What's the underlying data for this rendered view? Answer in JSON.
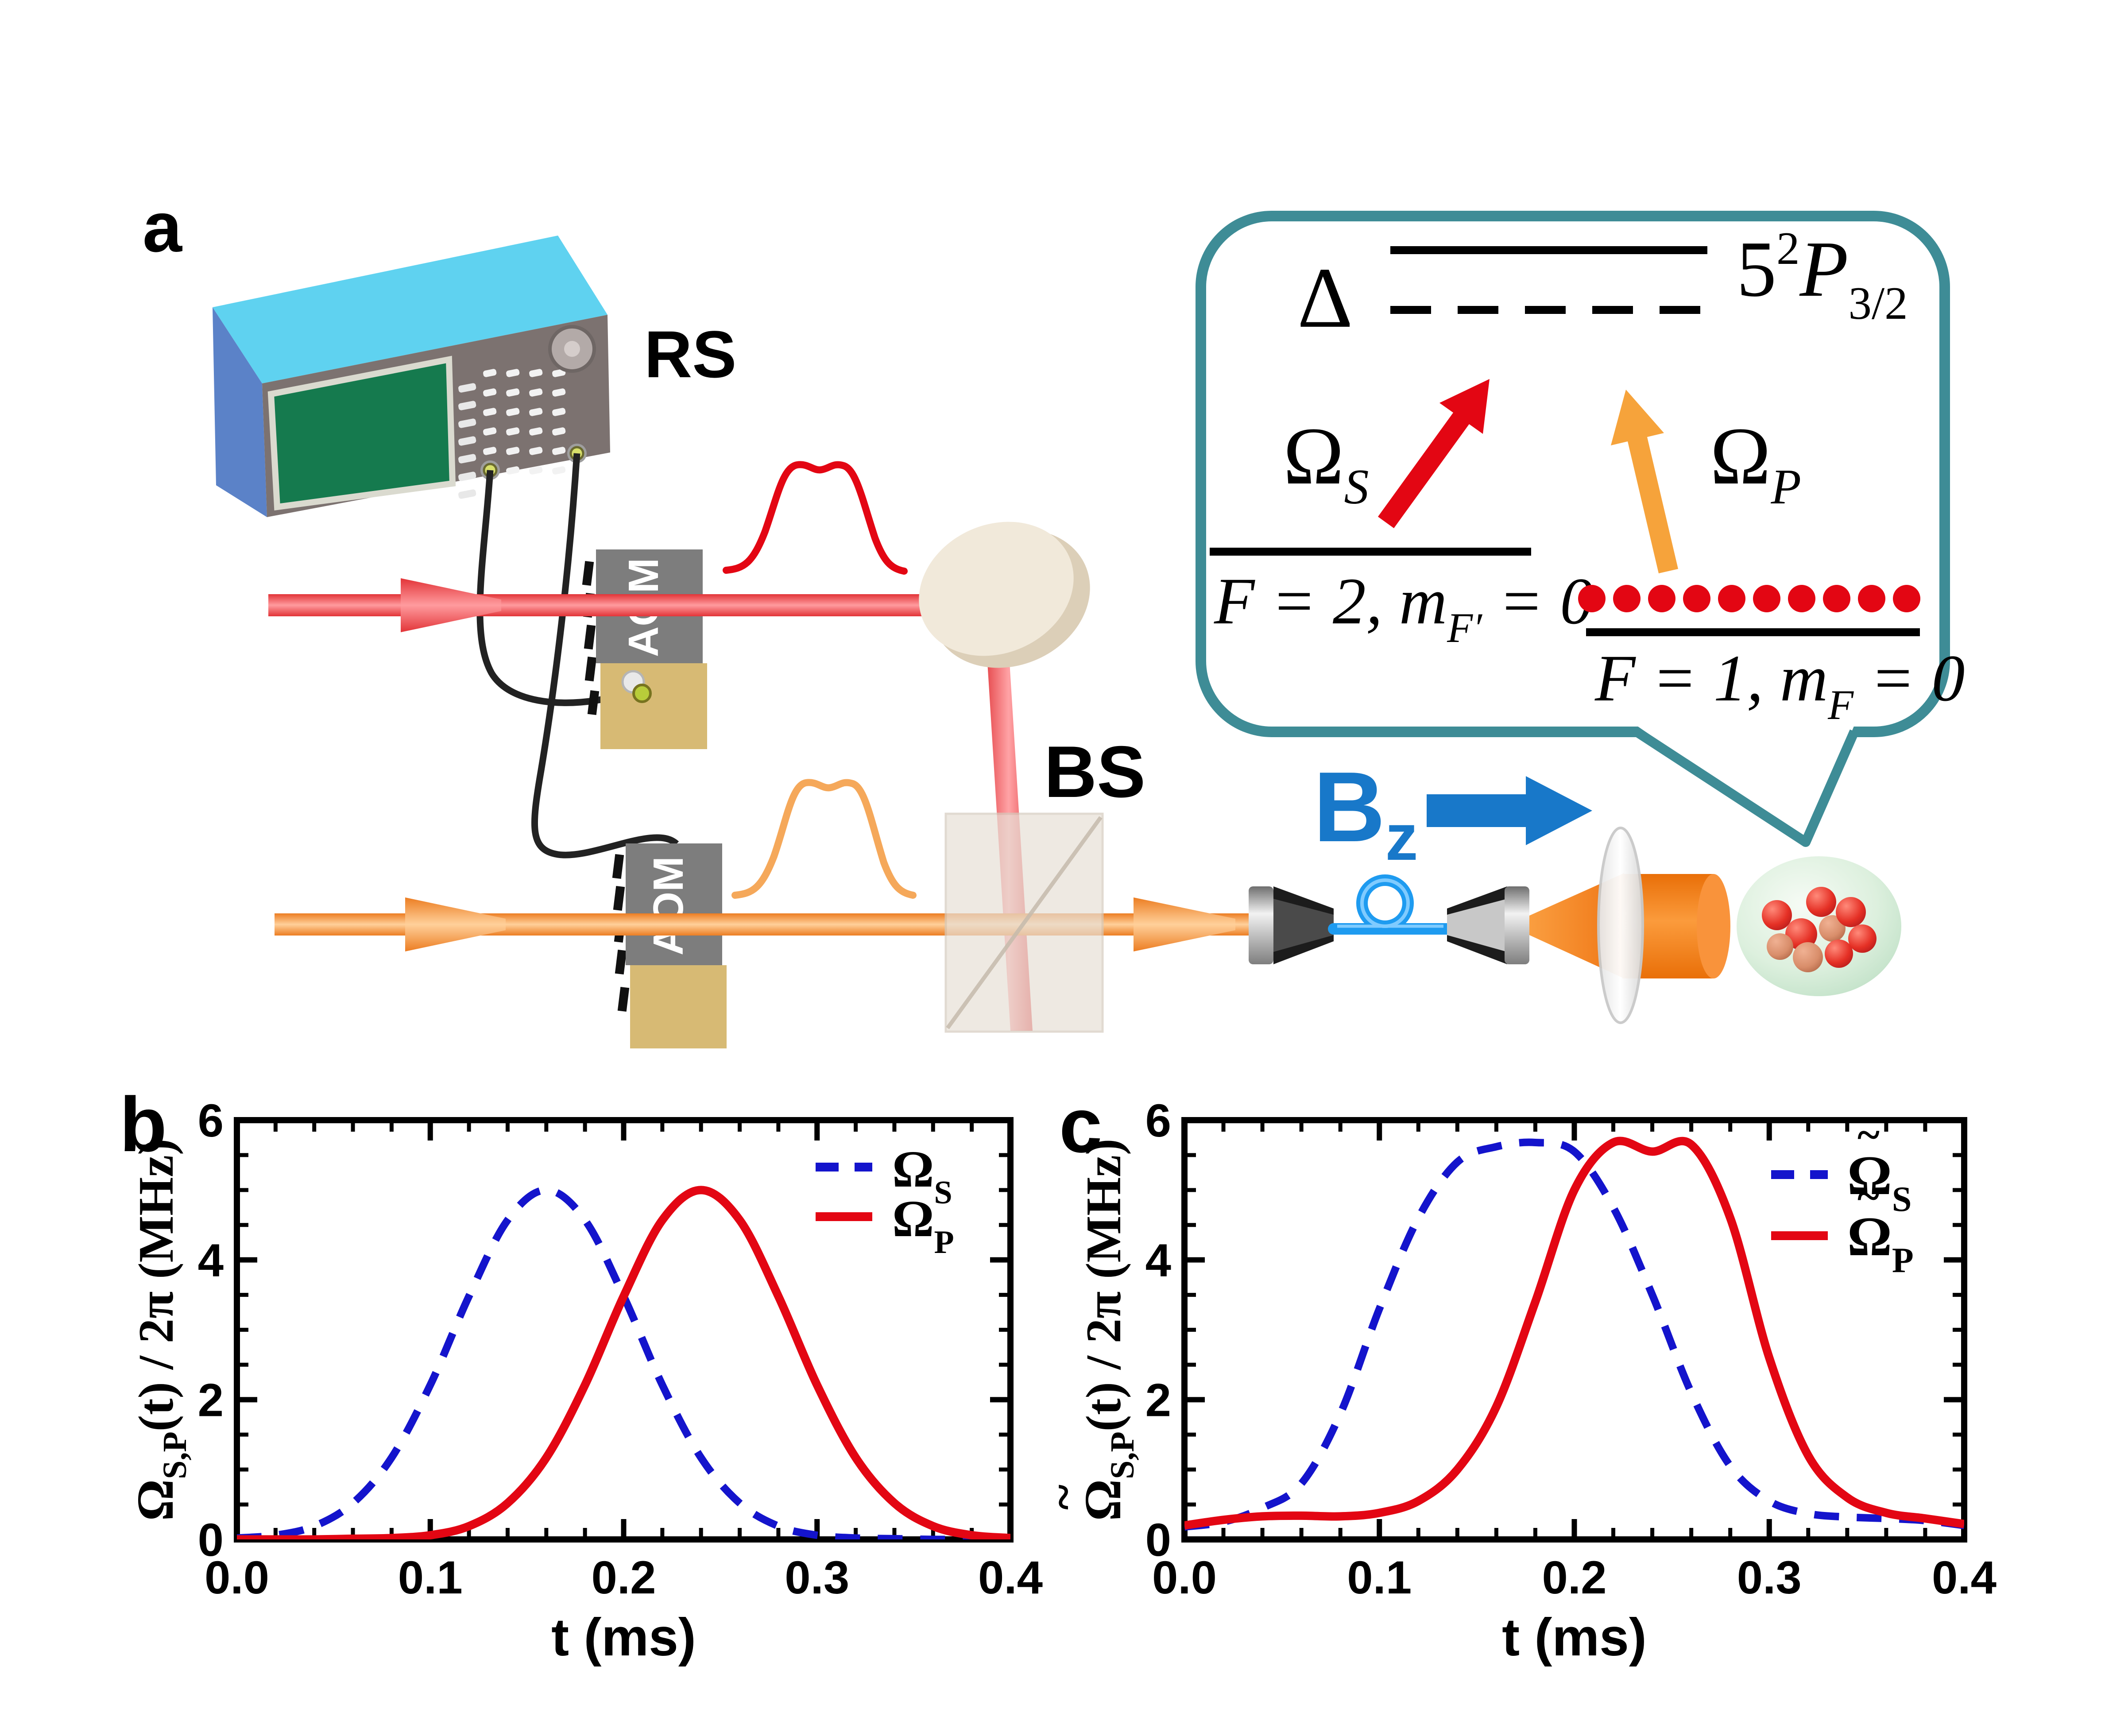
{
  "colors": {
    "beam_red": "#EE3B41",
    "beam_orange": "#F08223",
    "pulse_red": "#E30613",
    "pulse_orange": "#F5A85A",
    "curve_blue": "#1414CC",
    "curve_red": "#E30613",
    "bz_blue": "#1878C9",
    "bubble_teal": "#3E8C96",
    "fiber_blue": "#1E9BF0",
    "device_top_cyan": "#5FD2F0",
    "device_front_gray": "#7C7270",
    "device_screen_green": "#157A4E",
    "aom_tan": "#D7BA74",
    "atom_red": "#E53025"
  },
  "panel_a": {
    "label": "a",
    "rs_label": "RS",
    "bs_label": "BS",
    "aom_label_1": "AOM",
    "aom_label_2": "AOM",
    "bz_label": {
      "base": "B",
      "sub": "z"
    },
    "atom_cloud": {
      "atom_count": 9
    },
    "inset": {
      "detuning": "Δ",
      "excited_state": {
        "n": "5",
        "sup": "2",
        "term": "P",
        "sub": "3/2"
      },
      "omega_s": {
        "symbol": "Ω",
        "sub": "S"
      },
      "omega_p": {
        "symbol": "Ω",
        "sub": "P"
      },
      "level_f2": {
        "pre": "F = 2, m",
        "sub": "F′",
        "post": " = 0"
      },
      "level_f1": {
        "pre": "F = 1, m",
        "sub": "F",
        "post": " = 0"
      },
      "population_dots": 10
    }
  },
  "chart_data": [
    {
      "id": "b",
      "panel_label": "b",
      "type": "line",
      "title": "",
      "xlabel": "t (ms)",
      "ylabel": "ΩS,P(t) / 2π (MHz)",
      "ylabel_parts": {
        "tilde": false,
        "symbol": "Ω",
        "sub": "S,P",
        "rest": "(t) / 2π (MHz)"
      },
      "xlim": [
        0,
        0.4
      ],
      "ylim": [
        0,
        6
      ],
      "xticks": [
        0,
        0.1,
        0.2,
        0.3,
        0.4
      ],
      "xtick_labels": [
        "0.0",
        "0.1",
        "0.2",
        "0.3",
        "0.4"
      ],
      "yticks": [
        0,
        2,
        4,
        6
      ],
      "ytick_labels": [
        "0",
        "2",
        "4",
        "6"
      ],
      "x_minor_step": 0.02,
      "y_minor_step": 0.5,
      "grid": false,
      "legend_position": "top-right",
      "x": [
        0,
        0.02,
        0.04,
        0.06,
        0.08,
        0.1,
        0.12,
        0.14,
        0.16,
        0.18,
        0.2,
        0.22,
        0.24,
        0.26,
        0.28,
        0.3,
        0.32,
        0.34,
        0.36,
        0.38,
        0.4
      ],
      "series": [
        {
          "name": "Ω_S",
          "label_parts": {
            "tilde": false,
            "symbol": "Ω",
            "sub": "S"
          },
          "style": "dashed",
          "color": "#1414CC",
          "y": [
            0.02,
            0.06,
            0.19,
            0.52,
            1.17,
            2.21,
            3.48,
            4.57,
            5.0,
            4.57,
            3.48,
            2.21,
            1.17,
            0.52,
            0.19,
            0.06,
            0.02,
            0.01,
            0,
            0,
            0
          ]
        },
        {
          "name": "Ω_P",
          "label_parts": {
            "tilde": false,
            "symbol": "Ω",
            "sub": "P"
          },
          "style": "solid",
          "color": "#E30613",
          "y": [
            0,
            0,
            0,
            0.01,
            0.02,
            0.06,
            0.19,
            0.52,
            1.17,
            2.21,
            3.48,
            4.57,
            5.0,
            4.57,
            3.48,
            2.21,
            1.17,
            0.52,
            0.19,
            0.06,
            0.02
          ]
        }
      ]
    },
    {
      "id": "c",
      "panel_label": "c",
      "type": "line",
      "title": "",
      "xlabel": "t (ms)",
      "ylabel": "Ω̃S,P(t) / 2π (MHz)",
      "ylabel_parts": {
        "tilde": true,
        "symbol": "Ω",
        "sub": "S,P",
        "rest": "(t) / 2π (MHz)"
      },
      "xlim": [
        0,
        0.4
      ],
      "ylim": [
        0,
        6
      ],
      "xticks": [
        0,
        0.1,
        0.2,
        0.3,
        0.4
      ],
      "xtick_labels": [
        "0.0",
        "0.1",
        "0.2",
        "0.3",
        "0.4"
      ],
      "yticks": [
        0,
        2,
        4,
        6
      ],
      "ytick_labels": [
        "0",
        "2",
        "4",
        "6"
      ],
      "x_minor_step": 0.02,
      "y_minor_step": 0.5,
      "grid": false,
      "legend_position": "top-right",
      "x": [
        0,
        0.02,
        0.04,
        0.06,
        0.08,
        0.1,
        0.12,
        0.14,
        0.16,
        0.18,
        0.2,
        0.22,
        0.24,
        0.26,
        0.28,
        0.3,
        0.32,
        0.34,
        0.36,
        0.38,
        0.4
      ],
      "series": [
        {
          "name": "Ω̃_S",
          "label_parts": {
            "tilde": true,
            "symbol": "Ω",
            "sub": "S"
          },
          "style": "dashed",
          "color": "#1414CC",
          "y": [
            0.18,
            0.25,
            0.45,
            0.8,
            1.8,
            3.3,
            4.6,
            5.4,
            5.62,
            5.68,
            5.55,
            4.75,
            3.5,
            2.1,
            1.05,
            0.55,
            0.37,
            0.32,
            0.3,
            0.27,
            0.2
          ]
        },
        {
          "name": "Ω̃_P",
          "label_parts": {
            "tilde": true,
            "symbol": "Ω",
            "sub": "P"
          },
          "style": "solid",
          "color": "#E30613",
          "y": [
            0.2,
            0.28,
            0.33,
            0.34,
            0.33,
            0.38,
            0.55,
            1.0,
            1.9,
            3.4,
            5.0,
            5.68,
            5.55,
            5.65,
            4.6,
            2.6,
            1.2,
            0.6,
            0.38,
            0.3,
            0.22
          ]
        }
      ]
    }
  ]
}
